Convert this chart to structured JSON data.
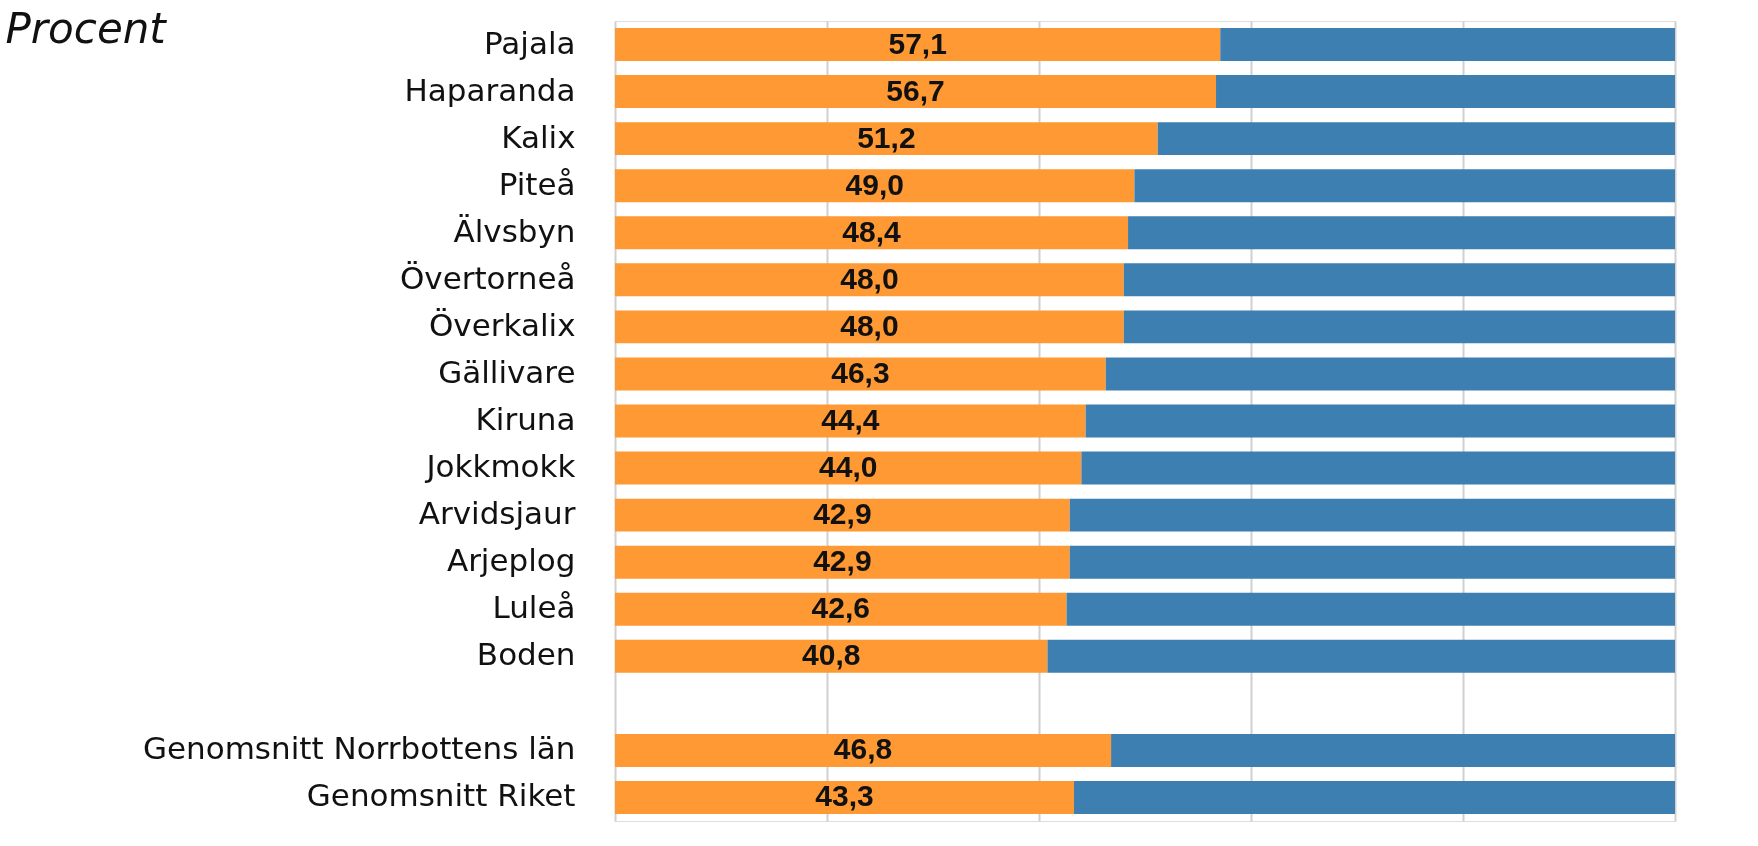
{
  "chart_data": {
    "type": "bar",
    "orientation": "horizontal",
    "stacked": true,
    "ylabel": "Procent",
    "categories": [
      "Pajala",
      "Haparanda",
      "Kalix",
      "Piteå",
      "Älvsbyn",
      "Övertorneå",
      "Överkalix",
      "Gällivare",
      "Kiruna",
      "Jokkmokk",
      "Arvidsjaur",
      "Arjeplog",
      "Luleå",
      "Boden",
      null,
      "Genomsnitt Norrbottens län",
      "Genomsnitt Riket"
    ],
    "series": [
      {
        "color": "#ff9933",
        "values": [
          57.1,
          56.7,
          51.2,
          49.0,
          48.4,
          48.0,
          48.0,
          46.3,
          44.4,
          44.0,
          42.9,
          42.9,
          42.6,
          40.8,
          null,
          46.8,
          43.3
        ],
        "value_labels": [
          "57,1",
          "56,7",
          "51,2",
          "49,0",
          "48,4",
          "48,0",
          "48,0",
          "46,3",
          "44,4",
          "44,0",
          "42,9",
          "42,9",
          "42,6",
          "40,8",
          null,
          "46,8",
          "43,3"
        ]
      },
      {
        "color": "#3d7fb0",
        "values": [
          42.9,
          43.3,
          48.8,
          51.0,
          51.6,
          52.0,
          52.0,
          53.7,
          55.6,
          56.0,
          57.1,
          57.1,
          57.4,
          59.2,
          null,
          53.2,
          56.7
        ]
      }
    ],
    "xlim": [
      0,
      100
    ],
    "xticks": [
      {
        "value": 0,
        "label": null
      },
      {
        "value": 20,
        "label": null
      },
      {
        "value": 40,
        "label": null
      },
      {
        "value": 60,
        "label": null
      },
      {
        "value": 80,
        "label": null
      },
      {
        "value": 100,
        "label": null
      }
    ],
    "grid": "x",
    "tick_labels": "y",
    "legend": false
  }
}
